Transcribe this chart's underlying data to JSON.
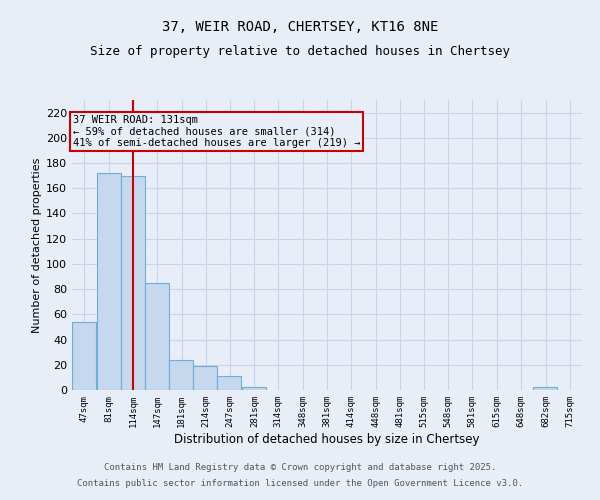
{
  "title1": "37, WEIR ROAD, CHERTSEY, KT16 8NE",
  "title2": "Size of property relative to detached houses in Chertsey",
  "xlabel": "Distribution of detached houses by size in Chertsey",
  "ylabel": "Number of detached properties",
  "bins": [
    47,
    81,
    114,
    147,
    181,
    214,
    247,
    281,
    314,
    348,
    381,
    414,
    448,
    481,
    515,
    548,
    581,
    615,
    648,
    682,
    715
  ],
  "counts": [
    54,
    172,
    170,
    85,
    24,
    19,
    11,
    2,
    0,
    0,
    0,
    0,
    0,
    0,
    0,
    0,
    0,
    0,
    0,
    2,
    0
  ],
  "bar_color": "#c5d8ed",
  "bar_edge_color": "#6baed6",
  "grid_color": "#c8d4e8",
  "property_size": 131,
  "vline_color": "#cc0000",
  "annotation_line1": "37 WEIR ROAD: 131sqm",
  "annotation_line2": "← 59% of detached houses are smaller (314)",
  "annotation_line3": "41% of semi-detached houses are larger (219) →",
  "annotation_box_color": "#cc0000",
  "ylim": [
    0,
    230
  ],
  "yticks": [
    0,
    20,
    40,
    60,
    80,
    100,
    120,
    140,
    160,
    180,
    200,
    220
  ],
  "footer1": "Contains HM Land Registry data © Crown copyright and database right 2025.",
  "footer2": "Contains public sector information licensed under the Open Government Licence v3.0.",
  "bg_color": "#e8eef8",
  "title_fontsize": 10,
  "subtitle_fontsize": 9
}
